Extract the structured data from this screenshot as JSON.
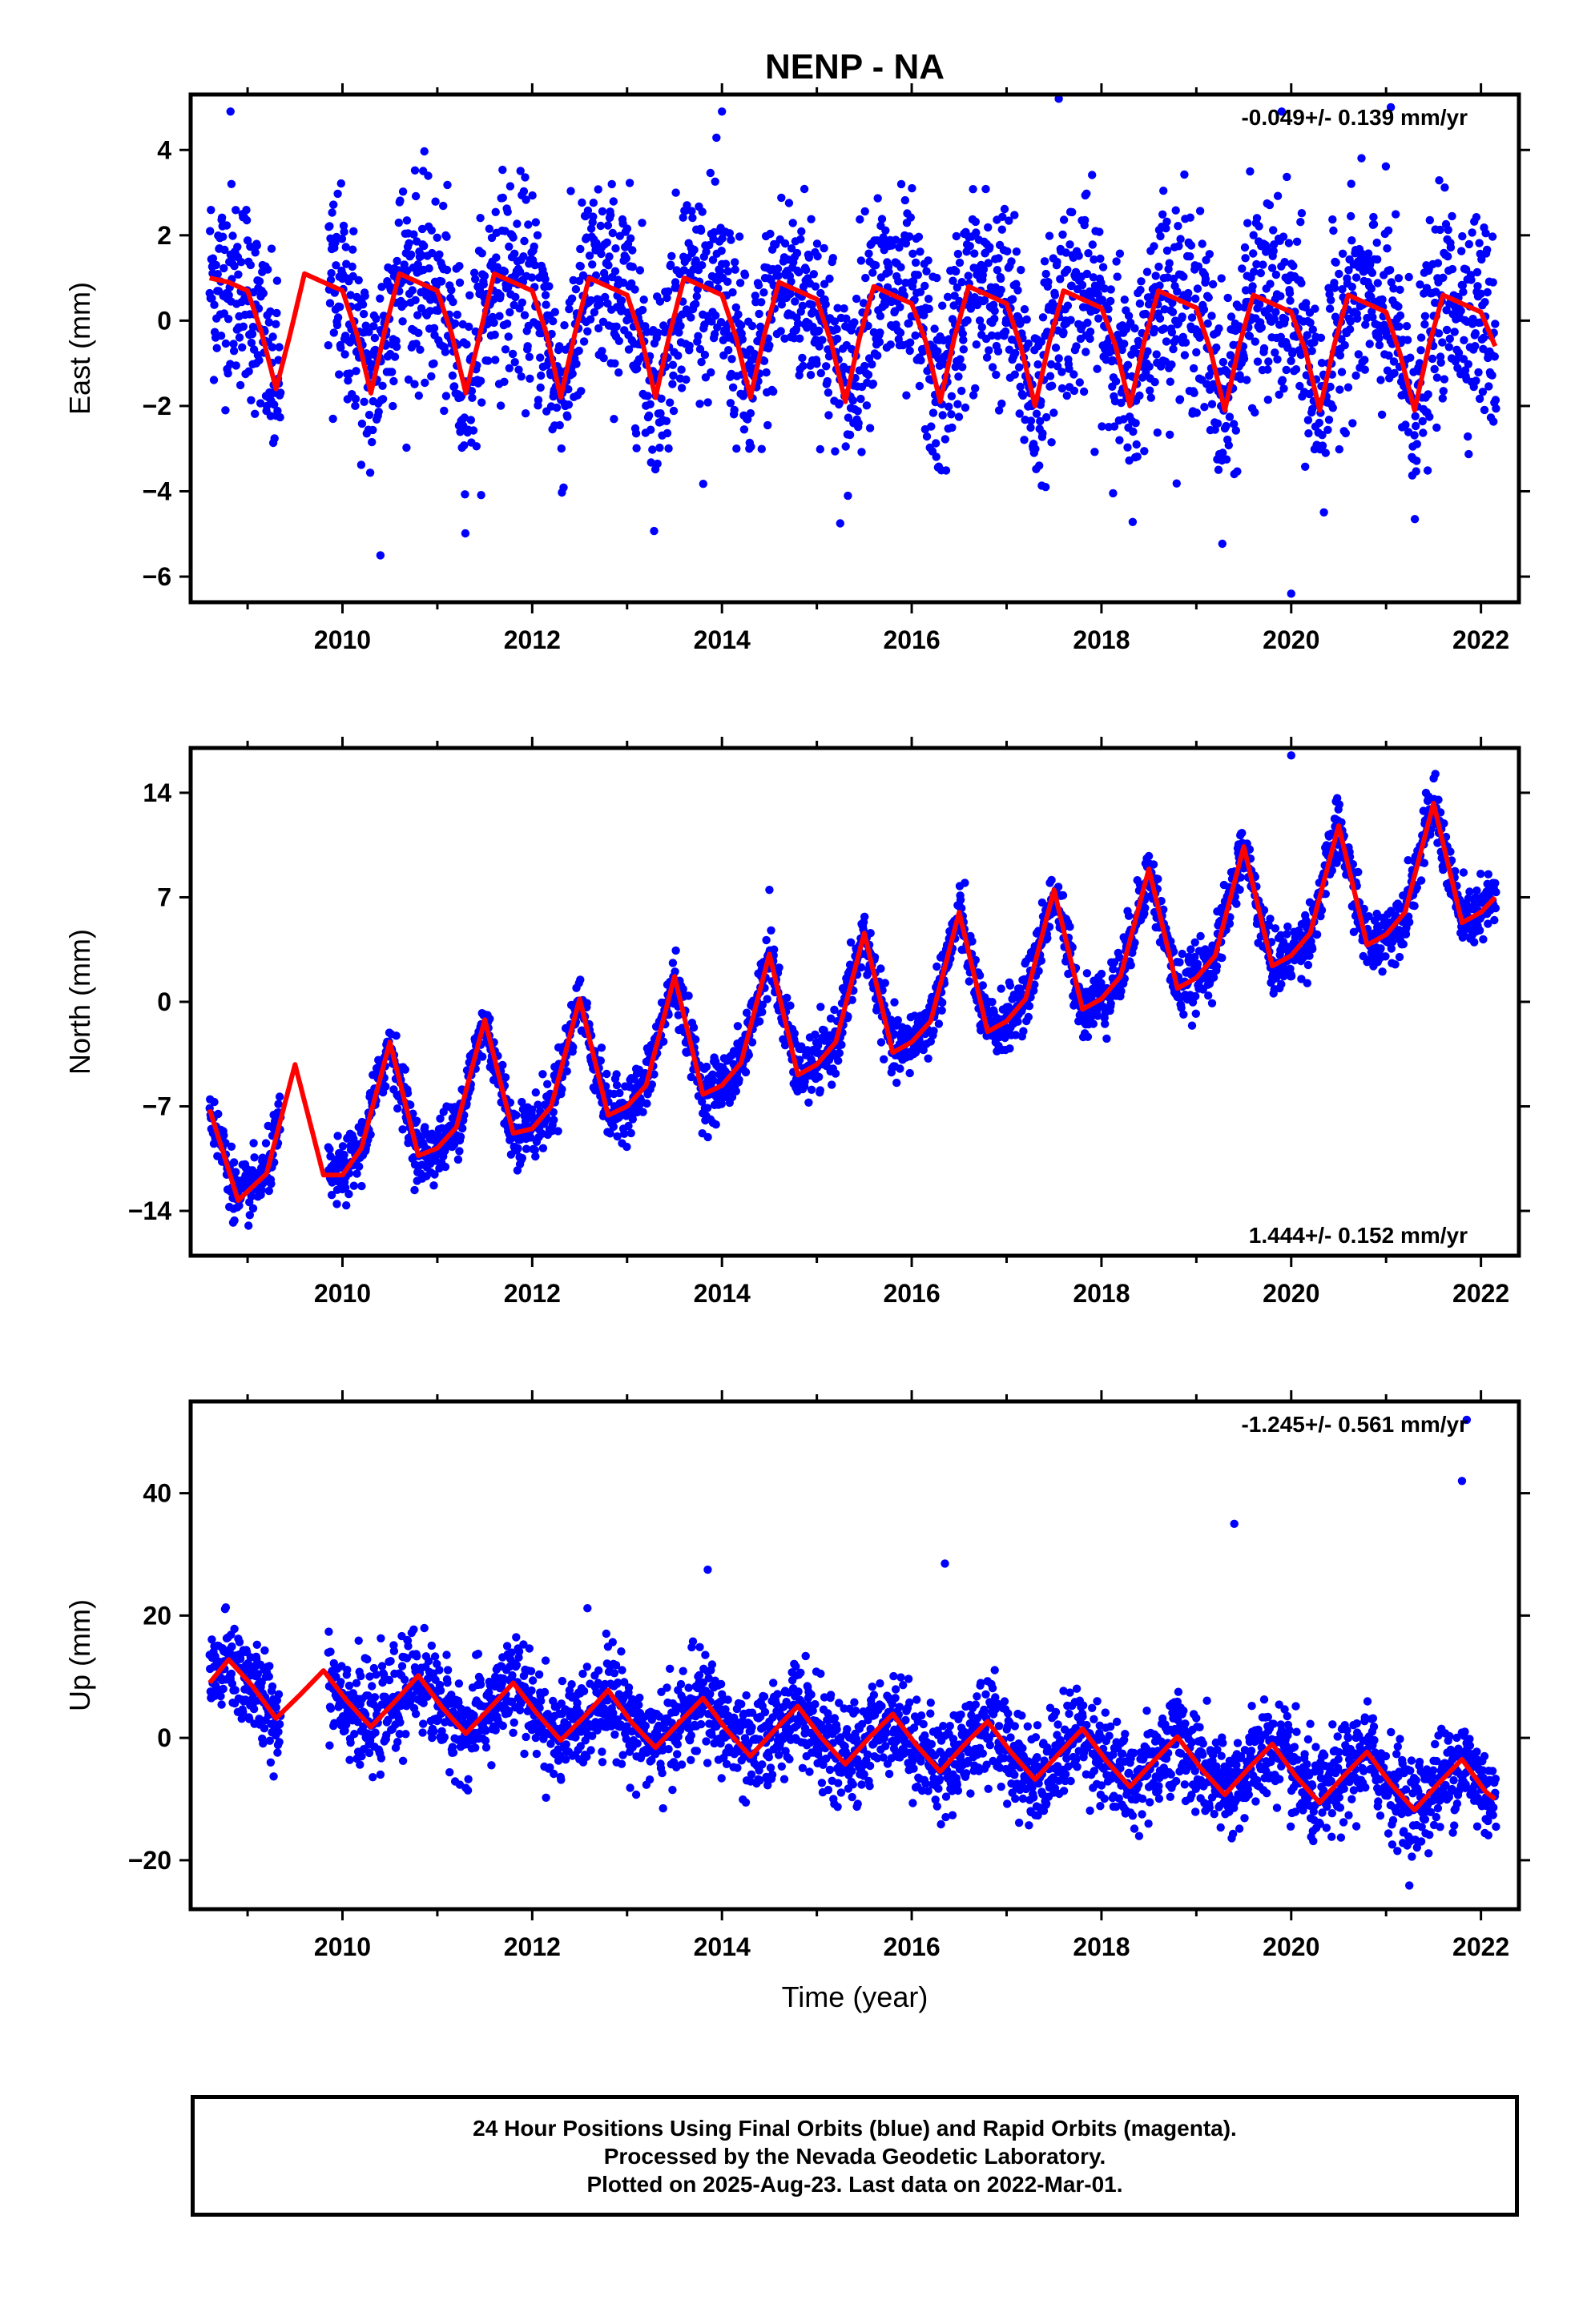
{
  "title": "NENP - NA",
  "xlabel": "Time (year)",
  "footer": [
    "24 Hour Positions Using Final Orbits (blue) and Rapid Orbits (magenta).",
    "Processed by the Nevada Geodetic Laboratory.",
    "Plotted on 2025-Aug-23. Last data on 2022-Mar-01."
  ],
  "colors": {
    "data": "#0000ff",
    "model": "#ff0000",
    "frame": "#000000"
  },
  "chart_data": [
    {
      "type": "scatter",
      "ylabel": "East (mm)",
      "rate": "-0.049+/- 0.139 mm/yr",
      "xlim": [
        2008.4,
        2022.4
      ],
      "ylim": [
        -6.6,
        5.3
      ],
      "xticks": [
        2010,
        2012,
        2014,
        2016,
        2018,
        2020,
        2022
      ],
      "yticks": [
        -6,
        -4,
        -2,
        0,
        2,
        4
      ],
      "model": {
        "x": [
          2008.6,
          2008.8,
          2009.0,
          2009.15,
          2009.3,
          2009.45,
          2009.6,
          2009.8,
          2010.0,
          2010.15,
          2010.3,
          2010.45,
          2010.6,
          2010.8,
          2011.0,
          2011.15,
          2011.3,
          2011.45,
          2011.6,
          2011.8,
          2012.0,
          2012.15,
          2012.3,
          2012.45,
          2012.6,
          2012.8,
          2013.0,
          2013.15,
          2013.3,
          2013.45,
          2013.6,
          2013.8,
          2014.0,
          2014.15,
          2014.3,
          2014.45,
          2014.6,
          2014.8,
          2015.0,
          2015.15,
          2015.3,
          2015.45,
          2015.6,
          2015.8,
          2016.0,
          2016.15,
          2016.3,
          2016.45,
          2016.6,
          2016.8,
          2017.0,
          2017.15,
          2017.3,
          2017.45,
          2017.6,
          2017.8,
          2018.0,
          2018.15,
          2018.3,
          2018.45,
          2018.6,
          2018.8,
          2019.0,
          2019.15,
          2019.3,
          2019.45,
          2019.6,
          2019.8,
          2020.0,
          2020.15,
          2020.3,
          2020.45,
          2020.6,
          2020.8,
          2021.0,
          2021.15,
          2021.3,
          2021.45,
          2021.6,
          2021.8,
          2022.0,
          2022.15
        ],
        "y": [
          1.0,
          0.9,
          0.7,
          -0.3,
          -1.6,
          -0.3,
          1.1,
          0.9,
          0.7,
          -0.3,
          -1.7,
          -0.2,
          1.1,
          0.9,
          0.7,
          -0.3,
          -1.7,
          -0.3,
          1.1,
          0.9,
          0.7,
          -0.3,
          -1.8,
          -0.3,
          1.0,
          0.8,
          0.6,
          -0.4,
          -1.8,
          -0.3,
          1.0,
          0.8,
          0.6,
          -0.4,
          -1.8,
          -0.3,
          0.9,
          0.7,
          0.5,
          -0.5,
          -1.9,
          -0.4,
          0.8,
          0.6,
          0.4,
          -0.5,
          -1.9,
          -0.4,
          0.8,
          0.6,
          0.4,
          -0.6,
          -2.0,
          -0.5,
          0.7,
          0.5,
          0.3,
          -0.6,
          -2.0,
          -0.5,
          0.7,
          0.5,
          0.3,
          -0.7,
          -2.1,
          -0.6,
          0.6,
          0.4,
          0.2,
          -0.7,
          -2.1,
          -0.6,
          0.6,
          0.4,
          0.2,
          -0.8,
          -2.1,
          -0.6,
          0.6,
          0.4,
          0.2,
          -0.6
        ]
      },
      "outliers": {
        "x": [
          2008.82,
          2009.9,
          2014.0,
          2017.55,
          2019.9,
          2021.05,
          2020.0,
          2010.4
        ],
        "y": [
          4.9,
          -2.3,
          4.9,
          5.2,
          4.9,
          5.0,
          -6.4,
          -5.5
        ]
      }
    },
    {
      "type": "scatter",
      "ylabel": "North (mm)",
      "rate": "1.444+/- 0.152 mm/yr",
      "xlim": [
        2008.4,
        2022.4
      ],
      "ylim": [
        -17,
        17
      ],
      "xticks": [
        2010,
        2012,
        2014,
        2016,
        2018,
        2020,
        2022
      ],
      "yticks": [
        -14,
        -7,
        0,
        7,
        14
      ],
      "model": {
        "x": [
          2008.6,
          2008.9,
          2009.2,
          2009.5,
          2009.8,
          2010.0,
          2010.2,
          2010.5,
          2010.8,
          2011.0,
          2011.2,
          2011.5,
          2011.8,
          2012.0,
          2012.2,
          2012.5,
          2012.8,
          2013.0,
          2013.2,
          2013.5,
          2013.8,
          2014.0,
          2014.2,
          2014.5,
          2014.8,
          2015.0,
          2015.2,
          2015.5,
          2015.8,
          2016.0,
          2016.2,
          2016.5,
          2016.8,
          2017.0,
          2017.2,
          2017.5,
          2017.8,
          2018.0,
          2018.2,
          2018.5,
          2018.8,
          2019.0,
          2019.2,
          2019.5,
          2019.8,
          2020.0,
          2020.2,
          2020.5,
          2020.8,
          2021.0,
          2021.2,
          2021.5,
          2021.8,
          2022.0,
          2022.15
        ],
        "y": [
          -7.2,
          -13.3,
          -11.5,
          -4.2,
          -11.6,
          -11.6,
          -9.8,
          -2.7,
          -10.3,
          -9.8,
          -8.4,
          -1.2,
          -8.8,
          -8.5,
          -7.0,
          0.2,
          -7.6,
          -7.0,
          -5.6,
          1.7,
          -6.2,
          -5.6,
          -4.1,
          3.2,
          -4.9,
          -4.2,
          -2.7,
          4.6,
          -3.4,
          -2.7,
          -1.3,
          6.0,
          -2.0,
          -1.3,
          0.2,
          7.5,
          -0.5,
          0.2,
          1.7,
          8.9,
          0.9,
          1.6,
          3.1,
          10.4,
          2.4,
          3.1,
          4.6,
          11.8,
          3.8,
          4.5,
          6.0,
          13.3,
          5.3,
          6.0,
          7.0
        ]
      },
      "outliers": {
        "x": [
          2014.5,
          2020.0
        ],
        "y": [
          7.5,
          16.5
        ]
      }
    },
    {
      "type": "scatter",
      "ylabel": "Up (mm)",
      "rate": "-1.245+/- 0.561 mm/yr",
      "xlim": [
        2008.4,
        2022.4
      ],
      "ylim": [
        -28,
        55
      ],
      "xticks": [
        2010,
        2012,
        2014,
        2016,
        2018,
        2020,
        2022
      ],
      "yticks": [
        -20,
        0,
        20,
        40
      ],
      "model": {
        "x": [
          2008.6,
          2008.8,
          2009.05,
          2009.3,
          2009.55,
          2009.8,
          2010.05,
          2010.3,
          2010.55,
          2010.8,
          2011.05,
          2011.3,
          2011.55,
          2011.8,
          2012.05,
          2012.3,
          2012.55,
          2012.8,
          2013.05,
          2013.3,
          2013.55,
          2013.8,
          2014.05,
          2014.3,
          2014.55,
          2014.8,
          2015.05,
          2015.3,
          2015.55,
          2015.8,
          2016.05,
          2016.3,
          2016.55,
          2016.8,
          2017.05,
          2017.3,
          2017.55,
          2017.8,
          2018.05,
          2018.3,
          2018.55,
          2018.8,
          2019.05,
          2019.3,
          2019.55,
          2019.8,
          2020.05,
          2020.3,
          2020.55,
          2020.8,
          2021.05,
          2021.3,
          2021.55,
          2021.8,
          2022.05,
          2022.15
        ],
        "y": [
          9.0,
          12.8,
          8.5,
          3.2,
          7.0,
          11.0,
          6.0,
          1.8,
          5.9,
          10.2,
          5.0,
          0.7,
          4.8,
          9.0,
          4.0,
          -0.4,
          3.5,
          7.8,
          2.5,
          -1.6,
          2.5,
          6.5,
          1.3,
          -3.0,
          1.2,
          5.2,
          0.0,
          -4.3,
          0.0,
          3.9,
          -1.2,
          -5.5,
          -1.2,
          2.7,
          -2.4,
          -6.8,
          -2.6,
          1.5,
          -3.7,
          -8.0,
          -3.8,
          0.2,
          -5.0,
          -9.3,
          -5.0,
          -1.0,
          -6.3,
          -10.6,
          -6.3,
          -2.3,
          -7.5,
          -11.8,
          -7.5,
          -3.5,
          -8.8,
          -10.0
        ]
      },
      "outliers": {
        "x": [
          2013.85,
          2016.35,
          2019.4,
          2021.8,
          2021.85
        ],
        "y": [
          27.5,
          28.5,
          35.0,
          42.0,
          52.0
        ]
      }
    }
  ]
}
